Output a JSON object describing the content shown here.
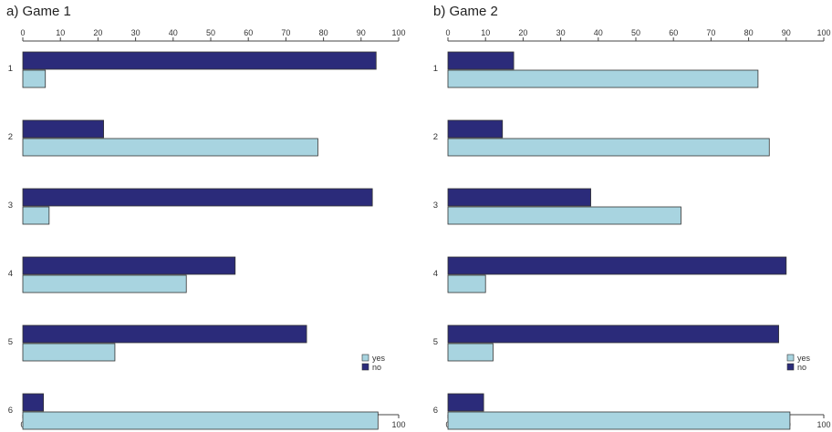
{
  "chart_data": [
    {
      "type": "bar",
      "orientation": "horizontal",
      "title": "a) Game 1",
      "xlim": [
        0,
        100
      ],
      "xticks": [
        0,
        10,
        20,
        30,
        40,
        50,
        60,
        70,
        80,
        90,
        100
      ],
      "categories": [
        "1",
        "2",
        "3",
        "4",
        "5",
        "6"
      ],
      "series": [
        {
          "name": "no",
          "color": "#2b2b7a",
          "values": [
            94,
            21.5,
            93,
            56.5,
            75.5,
            5.5
          ]
        },
        {
          "name": "yes",
          "color": "#a8d4e0",
          "values": [
            6,
            78.5,
            7,
            43.5,
            24.5,
            94.5
          ]
        }
      ],
      "legend": "bottom-right",
      "grid": false
    },
    {
      "type": "bar",
      "orientation": "horizontal",
      "title": "b) Game 2",
      "xlim": [
        0,
        100
      ],
      "xticks": [
        0,
        10,
        20,
        30,
        40,
        50,
        60,
        70,
        80,
        90,
        100
      ],
      "categories": [
        "1",
        "2",
        "3",
        "4",
        "5",
        "6"
      ],
      "series": [
        {
          "name": "no",
          "color": "#2b2b7a",
          "values": [
            17.5,
            14.5,
            38,
            90,
            88,
            9.5
          ]
        },
        {
          "name": "yes",
          "color": "#a8d4e0",
          "values": [
            82.5,
            85.5,
            62,
            10,
            12,
            91
          ]
        }
      ],
      "legend": "bottom-right",
      "grid": false
    }
  ]
}
